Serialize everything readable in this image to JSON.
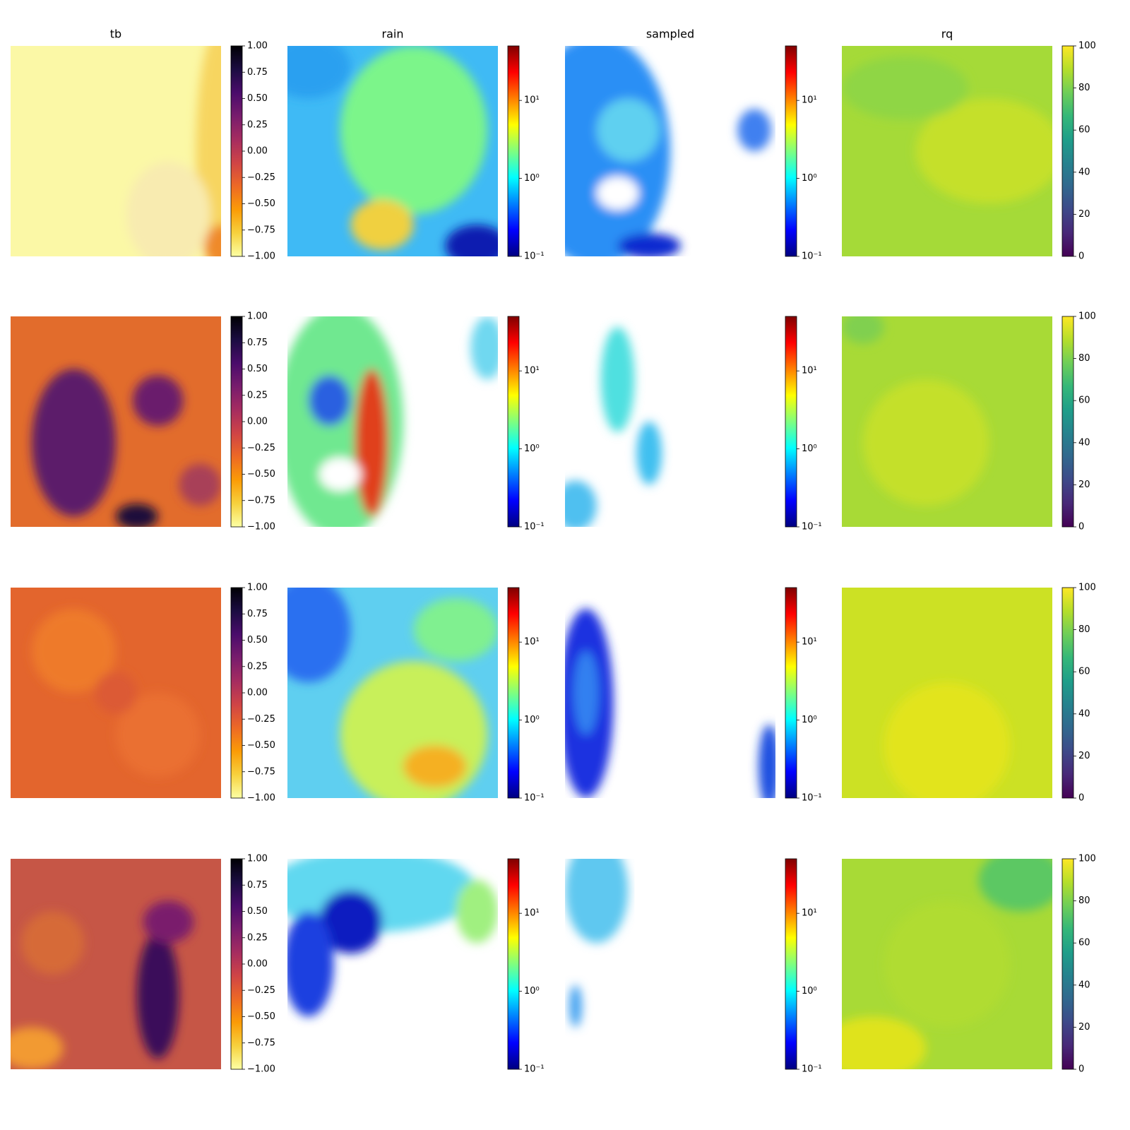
{
  "chart_data": [
    {
      "type": "heatmap",
      "title": "tb",
      "colormap": "inferno_r",
      "log": false,
      "ylim": [
        -1,
        1
      ],
      "yticks": [
        {
          "value": -1,
          "label": "−1.00"
        },
        {
          "value": -0.75,
          "label": "−0.75"
        },
        {
          "value": -0.5,
          "label": "−0.50"
        },
        {
          "value": -0.25,
          "label": "−0.25"
        },
        {
          "value": 0,
          "label": "0.00"
        },
        {
          "value": 0.25,
          "label": "0.25"
        },
        {
          "value": 0.5,
          "label": "0.50"
        },
        {
          "value": 0.75,
          "label": "0.75"
        },
        {
          "value": 1,
          "label": "1.00"
        }
      ]
    },
    {
      "type": "heatmap",
      "title": "rain",
      "colormap": "jet",
      "log": true,
      "ylim": [
        0.1,
        50
      ],
      "yticks": [
        {
          "value": 0.1,
          "label": "10⁻¹"
        },
        {
          "value": 1,
          "label": "10⁰"
        },
        {
          "value": 10,
          "label": "10¹"
        }
      ]
    },
    {
      "type": "heatmap",
      "title": "sampled",
      "colormap": "jet",
      "log": true,
      "ylim": [
        0.1,
        50
      ],
      "yticks": [
        {
          "value": 0.1,
          "label": "10⁻¹"
        },
        {
          "value": 1,
          "label": "10⁰"
        },
        {
          "value": 10,
          "label": "10¹"
        }
      ]
    },
    {
      "type": "heatmap",
      "title": "rq",
      "colormap": "viridis",
      "log": false,
      "ylim": [
        0,
        100
      ],
      "yticks": [
        0,
        20,
        40,
        60,
        80,
        100
      ]
    }
  ]
}
